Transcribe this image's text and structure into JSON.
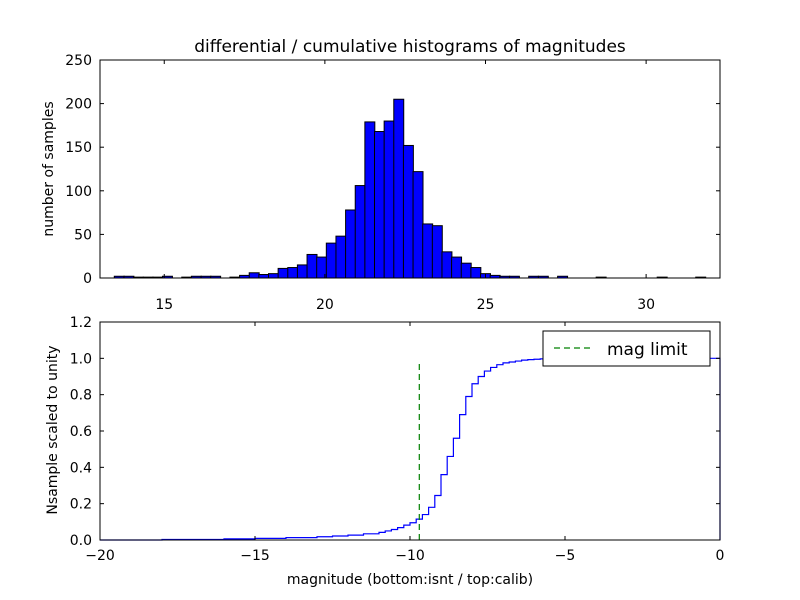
{
  "chart_data": [
    {
      "type": "bar",
      "title": "differential / cumulative histograms of magnitudes",
      "ylabel": "number of samples",
      "xlim": [
        13.0,
        32.3
      ],
      "ylim": [
        0,
        250
      ],
      "xticks": [
        15,
        20,
        25,
        30
      ],
      "yticks": [
        0,
        50,
        100,
        150,
        200,
        250
      ],
      "bin_width": 0.31,
      "bar_color": "#0000ff",
      "bins": [
        {
          "x": 13.6,
          "y": 2
        },
        {
          "x": 13.9,
          "y": 2
        },
        {
          "x": 14.2,
          "y": 1
        },
        {
          "x": 14.5,
          "y": 1
        },
        {
          "x": 14.8,
          "y": 1
        },
        {
          "x": 15.1,
          "y": 2
        },
        {
          "x": 15.4,
          "y": 0
        },
        {
          "x": 15.7,
          "y": 1
        },
        {
          "x": 16.0,
          "y": 2
        },
        {
          "x": 16.3,
          "y": 2
        },
        {
          "x": 16.6,
          "y": 2
        },
        {
          "x": 16.9,
          "y": 0
        },
        {
          "x": 17.2,
          "y": 1
        },
        {
          "x": 17.5,
          "y": 3
        },
        {
          "x": 17.8,
          "y": 6
        },
        {
          "x": 18.1,
          "y": 4
        },
        {
          "x": 18.4,
          "y": 5
        },
        {
          "x": 18.7,
          "y": 11
        },
        {
          "x": 19.0,
          "y": 12
        },
        {
          "x": 19.3,
          "y": 15
        },
        {
          "x": 19.6,
          "y": 27
        },
        {
          "x": 19.9,
          "y": 24
        },
        {
          "x": 20.2,
          "y": 40
        },
        {
          "x": 20.5,
          "y": 48
        },
        {
          "x": 20.8,
          "y": 78
        },
        {
          "x": 21.1,
          "y": 106
        },
        {
          "x": 21.4,
          "y": 179
        },
        {
          "x": 21.7,
          "y": 168
        },
        {
          "x": 22.0,
          "y": 180
        },
        {
          "x": 22.3,
          "y": 205
        },
        {
          "x": 22.6,
          "y": 152
        },
        {
          "x": 22.9,
          "y": 122
        },
        {
          "x": 23.2,
          "y": 62
        },
        {
          "x": 23.5,
          "y": 60
        },
        {
          "x": 23.8,
          "y": 30
        },
        {
          "x": 24.1,
          "y": 24
        },
        {
          "x": 24.4,
          "y": 17
        },
        {
          "x": 24.7,
          "y": 12
        },
        {
          "x": 25.0,
          "y": 5
        },
        {
          "x": 25.3,
          "y": 3
        },
        {
          "x": 25.6,
          "y": 2
        },
        {
          "x": 25.9,
          "y": 2
        },
        {
          "x": 26.2,
          "y": 0
        },
        {
          "x": 26.5,
          "y": 2
        },
        {
          "x": 26.8,
          "y": 2
        },
        {
          "x": 27.1,
          "y": 0
        },
        {
          "x": 27.4,
          "y": 2
        },
        {
          "x": 28.6,
          "y": 1
        },
        {
          "x": 30.5,
          "y": 1
        },
        {
          "x": 31.7,
          "y": 1
        }
      ]
    },
    {
      "type": "line",
      "xlabel": "magnitude (bottom:isnt / top:calib)",
      "ylabel": "Nsample scaled to unity",
      "xlim": [
        -20,
        0
      ],
      "ylim": [
        0,
        1.2
      ],
      "xticks": [
        -20,
        -15,
        -10,
        -5,
        0
      ],
      "ytick_labels": [
        "0.0",
        "0.2",
        "0.4",
        "0.6",
        "0.8",
        "1.0",
        "1.2"
      ],
      "series": [
        {
          "style": "step",
          "color": "#0000ff",
          "x": [
            -20.0,
            -18.0,
            -16.0,
            -15.0,
            -14.0,
            -13.0,
            -12.5,
            -12.0,
            -11.5,
            -11.0,
            -10.8,
            -10.6,
            -10.4,
            -10.2,
            -10.0,
            -9.8,
            -9.6,
            -9.4,
            -9.2,
            -9.0,
            -8.8,
            -8.6,
            -8.4,
            -8.2,
            -8.0,
            -7.8,
            -7.6,
            -7.4,
            -7.2,
            -7.0,
            -6.8,
            -6.6,
            -6.4,
            -6.2,
            -6.0,
            -5.8,
            -5.6,
            -5.4,
            -5.2,
            -5.0,
            -4.5,
            -4.0,
            -3.0,
            -2.0,
            -1.0,
            -0.1,
            0.0
          ],
          "y": [
            0.0,
            0.003,
            0.006,
            0.009,
            0.013,
            0.018,
            0.022,
            0.027,
            0.034,
            0.042,
            0.05,
            0.058,
            0.068,
            0.082,
            0.095,
            0.115,
            0.14,
            0.18,
            0.245,
            0.36,
            0.46,
            0.56,
            0.69,
            0.79,
            0.86,
            0.9,
            0.93,
            0.95,
            0.965,
            0.975,
            0.98,
            0.985,
            0.99,
            0.993,
            0.995,
            0.997,
            0.998,
            0.999,
            0.999,
            1.0,
            1.0,
            1.0,
            1.0,
            1.0,
            1.0,
            1.0,
            0.0
          ]
        },
        {
          "name": "mag limit",
          "style": "dashed",
          "color": "#008000",
          "x": [
            -9.7,
            -9.7
          ],
          "y": [
            0.0,
            0.97
          ]
        }
      ],
      "legend_position": "top-right"
    }
  ]
}
